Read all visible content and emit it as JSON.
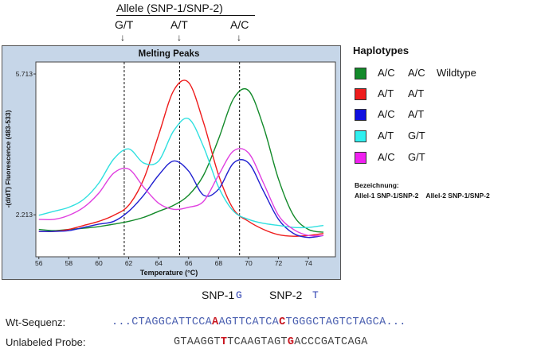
{
  "header": {
    "allele_label": "Allele  (SNP-1/SNP-2)",
    "peaks": [
      "G/T",
      "A/T",
      "A/C"
    ],
    "arrow": "↓"
  },
  "chart_data": {
    "type": "line",
    "title": "Melting Peaks",
    "xlabel": "Temperature (°C)",
    "ylabel": "-(d/dT) Fluorescence (483-533)",
    "xlim": [
      55.8,
      75.8
    ],
    "ylim": [
      1.17,
      6.01
    ],
    "xticks": [
      56,
      58,
      60,
      62,
      64,
      66,
      68,
      70,
      72,
      74
    ],
    "yticks": [
      2.213,
      5.713
    ],
    "ytick_labels": [
      "2.213",
      "5.713"
    ],
    "grid": false,
    "reference_lines_x": [
      61.7,
      65.4,
      69.4
    ],
    "x": [
      56,
      57,
      58,
      59,
      60,
      61,
      62,
      63,
      64,
      65,
      66,
      67,
      68,
      69,
      70,
      71,
      72,
      73,
      74,
      75
    ],
    "series": [
      {
        "name": "A/C A/C Wildtype",
        "color": "#138a2a",
        "values": [
          1.85,
          1.82,
          1.85,
          1.88,
          1.92,
          1.98,
          2.05,
          2.15,
          2.3,
          2.45,
          2.7,
          3.2,
          4.1,
          5.1,
          5.3,
          4.4,
          3.1,
          2.2,
          1.85,
          1.78
        ]
      },
      {
        "name": "A/T A/T",
        "color": "#ee1c1c",
        "values": [
          1.8,
          1.8,
          1.85,
          1.95,
          2.05,
          2.2,
          2.45,
          3.1,
          4.2,
          5.3,
          5.5,
          4.5,
          3.2,
          2.35,
          2.05,
          1.85,
          1.72,
          1.68,
          1.7,
          1.75
        ]
      },
      {
        "name": "A/C A/T",
        "color": "#2020d0",
        "values": [
          1.8,
          1.8,
          1.82,
          1.9,
          1.98,
          2.05,
          2.3,
          2.7,
          3.2,
          3.55,
          3.3,
          2.7,
          2.85,
          3.5,
          3.5,
          2.8,
          2.1,
          1.75,
          1.65,
          1.7
        ]
      },
      {
        "name": "A/T G/T",
        "color": "#30e0e0",
        "values": [
          2.2,
          2.3,
          2.4,
          2.6,
          3.0,
          3.6,
          3.85,
          3.5,
          3.55,
          4.3,
          4.6,
          3.9,
          2.9,
          2.3,
          2.1,
          2.0,
          1.95,
          1.9,
          1.9,
          1.95
        ]
      },
      {
        "name": "A/C G/T",
        "color": "#e040e0",
        "values": [
          2.1,
          2.1,
          2.2,
          2.4,
          2.75,
          3.25,
          3.35,
          2.9,
          2.5,
          2.35,
          2.4,
          2.55,
          3.2,
          3.8,
          3.75,
          3.0,
          2.2,
          1.85,
          1.7,
          1.7
        ]
      }
    ]
  },
  "legend": {
    "title": "Haplotypes",
    "items": [
      {
        "a1": "A/C",
        "a2": "A/C",
        "note": "Wildtype",
        "color": "#138a2a"
      },
      {
        "a1": "A/T",
        "a2": "A/T",
        "note": "",
        "color": "#ee1c1c"
      },
      {
        "a1": "A/C",
        "a2": "A/T",
        "note": "",
        "color": "#1010e0"
      },
      {
        "a1": "A/T",
        "a2": "G/T",
        "note": "",
        "color": "#30f0f0"
      },
      {
        "a1": "A/C",
        "a2": "G/T",
        "note": "",
        "color": "#f020f0"
      }
    ],
    "bez_title": "Bezeichnung:",
    "bez_text": "Allel-1 SNP-1/SNP-2    Allel-2 SNP-1/SNP-2"
  },
  "snp": {
    "snp1_label": "SNP-1",
    "snp1_base": "G",
    "snp2_label": "SNP-2",
    "snp2_base": "T"
  },
  "sequence": {
    "wt_label": "Wt-Sequenz:",
    "wt_parts": [
      "...CTAGGCATTCCA",
      "A",
      "AGTTCATCA",
      "C",
      "TGGGCTAGTCTAGCA..."
    ],
    "probe_label": "Unlabeled Probe:",
    "probe_parts": [
      "GTAAGGT",
      "T",
      "TCAAGTAGT",
      "G",
      "ACCCGATCAGA"
    ]
  }
}
